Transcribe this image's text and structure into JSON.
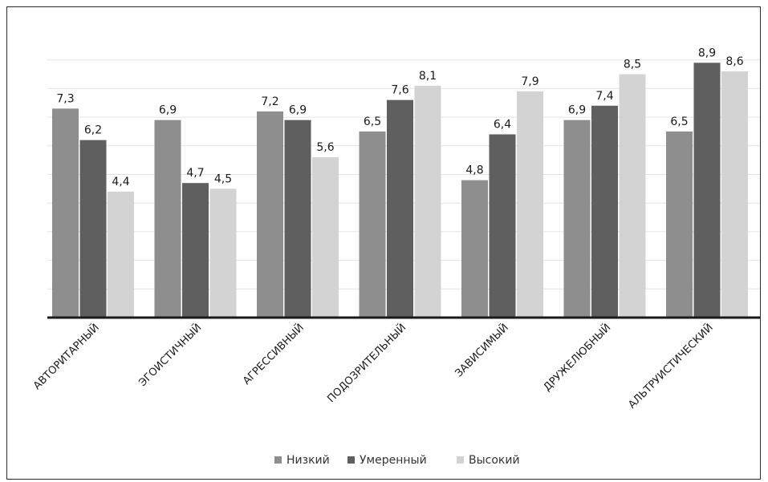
{
  "chart_data": {
    "type": "bar",
    "categories": [
      "АВТОРИТАРНЫЙ",
      "ЭГОИСТИЧНЫЙ",
      "АГРЕССИВНЫЙ",
      "ПОДОЗРИТЕЛЬНЫЙ",
      "ЗАВИСИМЫЙ",
      "ДРУЖЕЛЮБНЫЙ",
      "АЛЬТРУИСТИЧЕСКИЙ"
    ],
    "series": [
      {
        "name": "Низкий",
        "color": "#8e8e8e",
        "values": [
          7.3,
          6.9,
          7.2,
          6.5,
          4.8,
          6.9,
          6.5
        ],
        "labels": [
          "7,3",
          "6,9",
          "7,2",
          "6,5",
          "4,8",
          "6,9",
          "6,5"
        ]
      },
      {
        "name": "Умеренный",
        "color": "#5f5f5f",
        "values": [
          6.2,
          4.7,
          6.9,
          7.6,
          6.4,
          7.4,
          8.9
        ],
        "labels": [
          "6,2",
          "4,7",
          "6,9",
          "7,6",
          "6,4",
          "7,4",
          "8,9"
        ]
      },
      {
        "name": "Высокий",
        "color": "#d3d3d3",
        "values": [
          4.4,
          4.5,
          5.6,
          8.1,
          7.9,
          8.5,
          8.6
        ],
        "labels": [
          "4,4",
          "4,5",
          "5,6",
          "8,1",
          "7,9",
          "8,5",
          "8,6"
        ]
      }
    ],
    "ylim": [
      0,
      10
    ],
    "grid": true,
    "legend_position": "bottom"
  }
}
